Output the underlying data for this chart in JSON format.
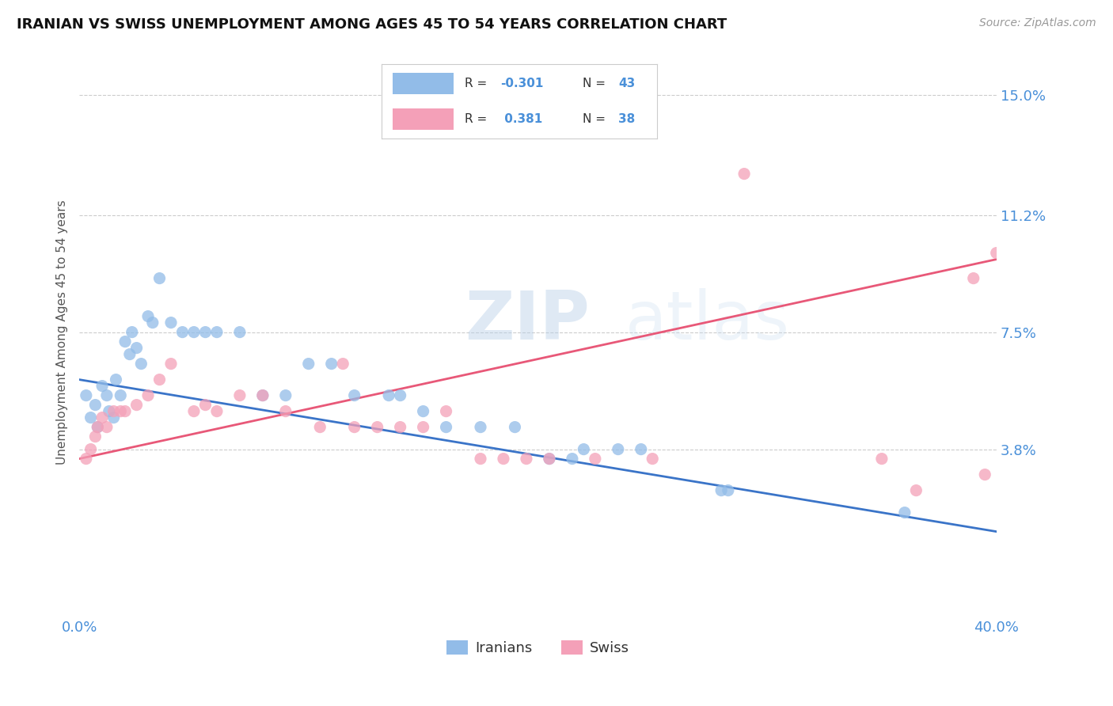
{
  "title": "IRANIAN VS SWISS UNEMPLOYMENT AMONG AGES 45 TO 54 YEARS CORRELATION CHART",
  "source": "Source: ZipAtlas.com",
  "ylabel": "Unemployment Among Ages 45 to 54 years",
  "xlim": [
    0,
    40
  ],
  "ylim": [
    -1.5,
    16.5
  ],
  "yticks": [
    0,
    3.8,
    7.5,
    11.2,
    15.0
  ],
  "ytick_labels": [
    "",
    "3.8%",
    "7.5%",
    "11.2%",
    "15.0%"
  ],
  "background_color": "#ffffff",
  "iranians_color": "#92bce8",
  "swiss_color": "#f4a0b8",
  "iranians_line_color": "#3a74c8",
  "swiss_line_color": "#e85878",
  "iranians_scatter": [
    [
      0.3,
      5.5
    ],
    [
      0.5,
      4.8
    ],
    [
      0.7,
      5.2
    ],
    [
      0.8,
      4.5
    ],
    [
      1.0,
      5.8
    ],
    [
      1.2,
      5.5
    ],
    [
      1.3,
      5.0
    ],
    [
      1.5,
      4.8
    ],
    [
      1.6,
      6.0
    ],
    [
      1.8,
      5.5
    ],
    [
      2.0,
      7.2
    ],
    [
      2.2,
      6.8
    ],
    [
      2.3,
      7.5
    ],
    [
      2.5,
      7.0
    ],
    [
      2.7,
      6.5
    ],
    [
      3.0,
      8.0
    ],
    [
      3.2,
      7.8
    ],
    [
      3.5,
      9.2
    ],
    [
      4.0,
      7.8
    ],
    [
      4.5,
      7.5
    ],
    [
      5.0,
      7.5
    ],
    [
      5.5,
      7.5
    ],
    [
      6.0,
      7.5
    ],
    [
      7.0,
      7.5
    ],
    [
      8.0,
      5.5
    ],
    [
      9.0,
      5.5
    ],
    [
      10.0,
      6.5
    ],
    [
      11.0,
      6.5
    ],
    [
      12.0,
      5.5
    ],
    [
      13.5,
      5.5
    ],
    [
      14.0,
      5.5
    ],
    [
      15.0,
      5.0
    ],
    [
      16.0,
      4.5
    ],
    [
      17.5,
      4.5
    ],
    [
      19.0,
      4.5
    ],
    [
      20.5,
      3.5
    ],
    [
      21.5,
      3.5
    ],
    [
      22.0,
      3.8
    ],
    [
      23.5,
      3.8
    ],
    [
      24.5,
      3.8
    ],
    [
      28.0,
      2.5
    ],
    [
      28.3,
      2.5
    ],
    [
      36.0,
      1.8
    ]
  ],
  "swiss_scatter": [
    [
      0.3,
      3.5
    ],
    [
      0.5,
      3.8
    ],
    [
      0.7,
      4.2
    ],
    [
      0.8,
      4.5
    ],
    [
      1.0,
      4.8
    ],
    [
      1.2,
      4.5
    ],
    [
      1.5,
      5.0
    ],
    [
      1.8,
      5.0
    ],
    [
      2.0,
      5.0
    ],
    [
      2.5,
      5.2
    ],
    [
      3.0,
      5.5
    ],
    [
      3.5,
      6.0
    ],
    [
      4.0,
      6.5
    ],
    [
      5.0,
      5.0
    ],
    [
      5.5,
      5.2
    ],
    [
      6.0,
      5.0
    ],
    [
      7.0,
      5.5
    ],
    [
      8.0,
      5.5
    ],
    [
      9.0,
      5.0
    ],
    [
      10.5,
      4.5
    ],
    [
      11.5,
      6.5
    ],
    [
      12.0,
      4.5
    ],
    [
      13.0,
      4.5
    ],
    [
      14.0,
      4.5
    ],
    [
      15.0,
      4.5
    ],
    [
      16.0,
      5.0
    ],
    [
      17.5,
      3.5
    ],
    [
      18.5,
      3.5
    ],
    [
      19.5,
      3.5
    ],
    [
      20.5,
      3.5
    ],
    [
      22.5,
      3.5
    ],
    [
      25.0,
      3.5
    ],
    [
      29.0,
      12.5
    ],
    [
      35.0,
      3.5
    ],
    [
      36.5,
      2.5
    ],
    [
      39.0,
      9.2
    ],
    [
      39.5,
      3.0
    ],
    [
      40.0,
      10.0
    ]
  ],
  "iran_trend": [
    6.0,
    1.2
  ],
  "swiss_trend": [
    3.5,
    9.8
  ]
}
